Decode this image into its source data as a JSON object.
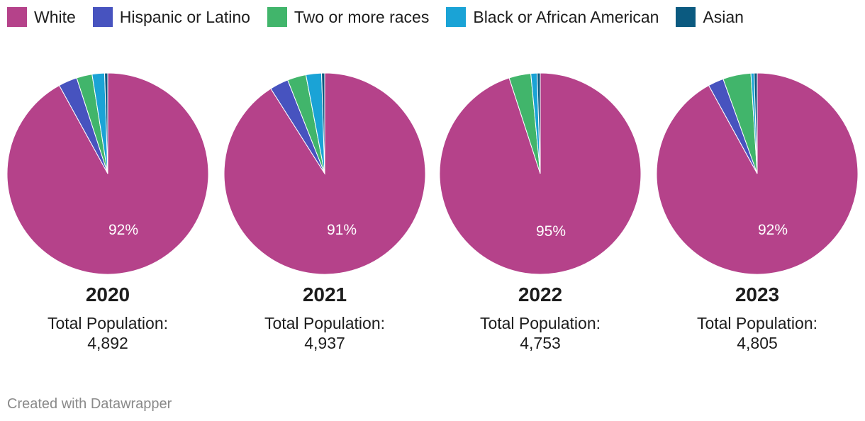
{
  "legend": [
    {
      "label": "White",
      "color": "#b5428a"
    },
    {
      "label": "Hispanic or Latino",
      "color": "#4753bf"
    },
    {
      "label": "Two or more races",
      "color": "#41b56b"
    },
    {
      "label": "Black or African American",
      "color": "#1aa3d6"
    },
    {
      "label": "Asian",
      "color": "#0b5a80"
    }
  ],
  "chart_data": [
    {
      "type": "pie",
      "title": "2020",
      "subtitle": "Total Population:",
      "total": "4,892",
      "categories": [
        "White",
        "Hispanic or Latino",
        "Two or more races",
        "Black or African American",
        "Asian"
      ],
      "values": [
        92,
        3,
        2.5,
        2,
        0.5
      ],
      "label": "92%"
    },
    {
      "type": "pie",
      "title": "2021",
      "subtitle": "Total Population:",
      "total": "4,937",
      "categories": [
        "White",
        "Hispanic or Latino",
        "Two or more races",
        "Black or African American",
        "Asian"
      ],
      "values": [
        91,
        3,
        3,
        2.5,
        0.5
      ],
      "label": "91%"
    },
    {
      "type": "pie",
      "title": "2022",
      "subtitle": "Total Population:",
      "total": "4,753",
      "categories": [
        "White",
        "Hispanic or Latino",
        "Two or more races",
        "Black or African American",
        "Asian"
      ],
      "values": [
        95,
        0,
        3.5,
        1,
        0.5
      ],
      "label": "95%"
    },
    {
      "type": "pie",
      "title": "2023",
      "subtitle": "Total Population:",
      "total": "4,805",
      "categories": [
        "White",
        "Hispanic or Latino",
        "Two or more races",
        "Black or African American",
        "Asian"
      ],
      "values": [
        92,
        2.5,
        4.5,
        0.5,
        0.5
      ],
      "label": "92%"
    }
  ],
  "footer": "Created with Datawrapper"
}
